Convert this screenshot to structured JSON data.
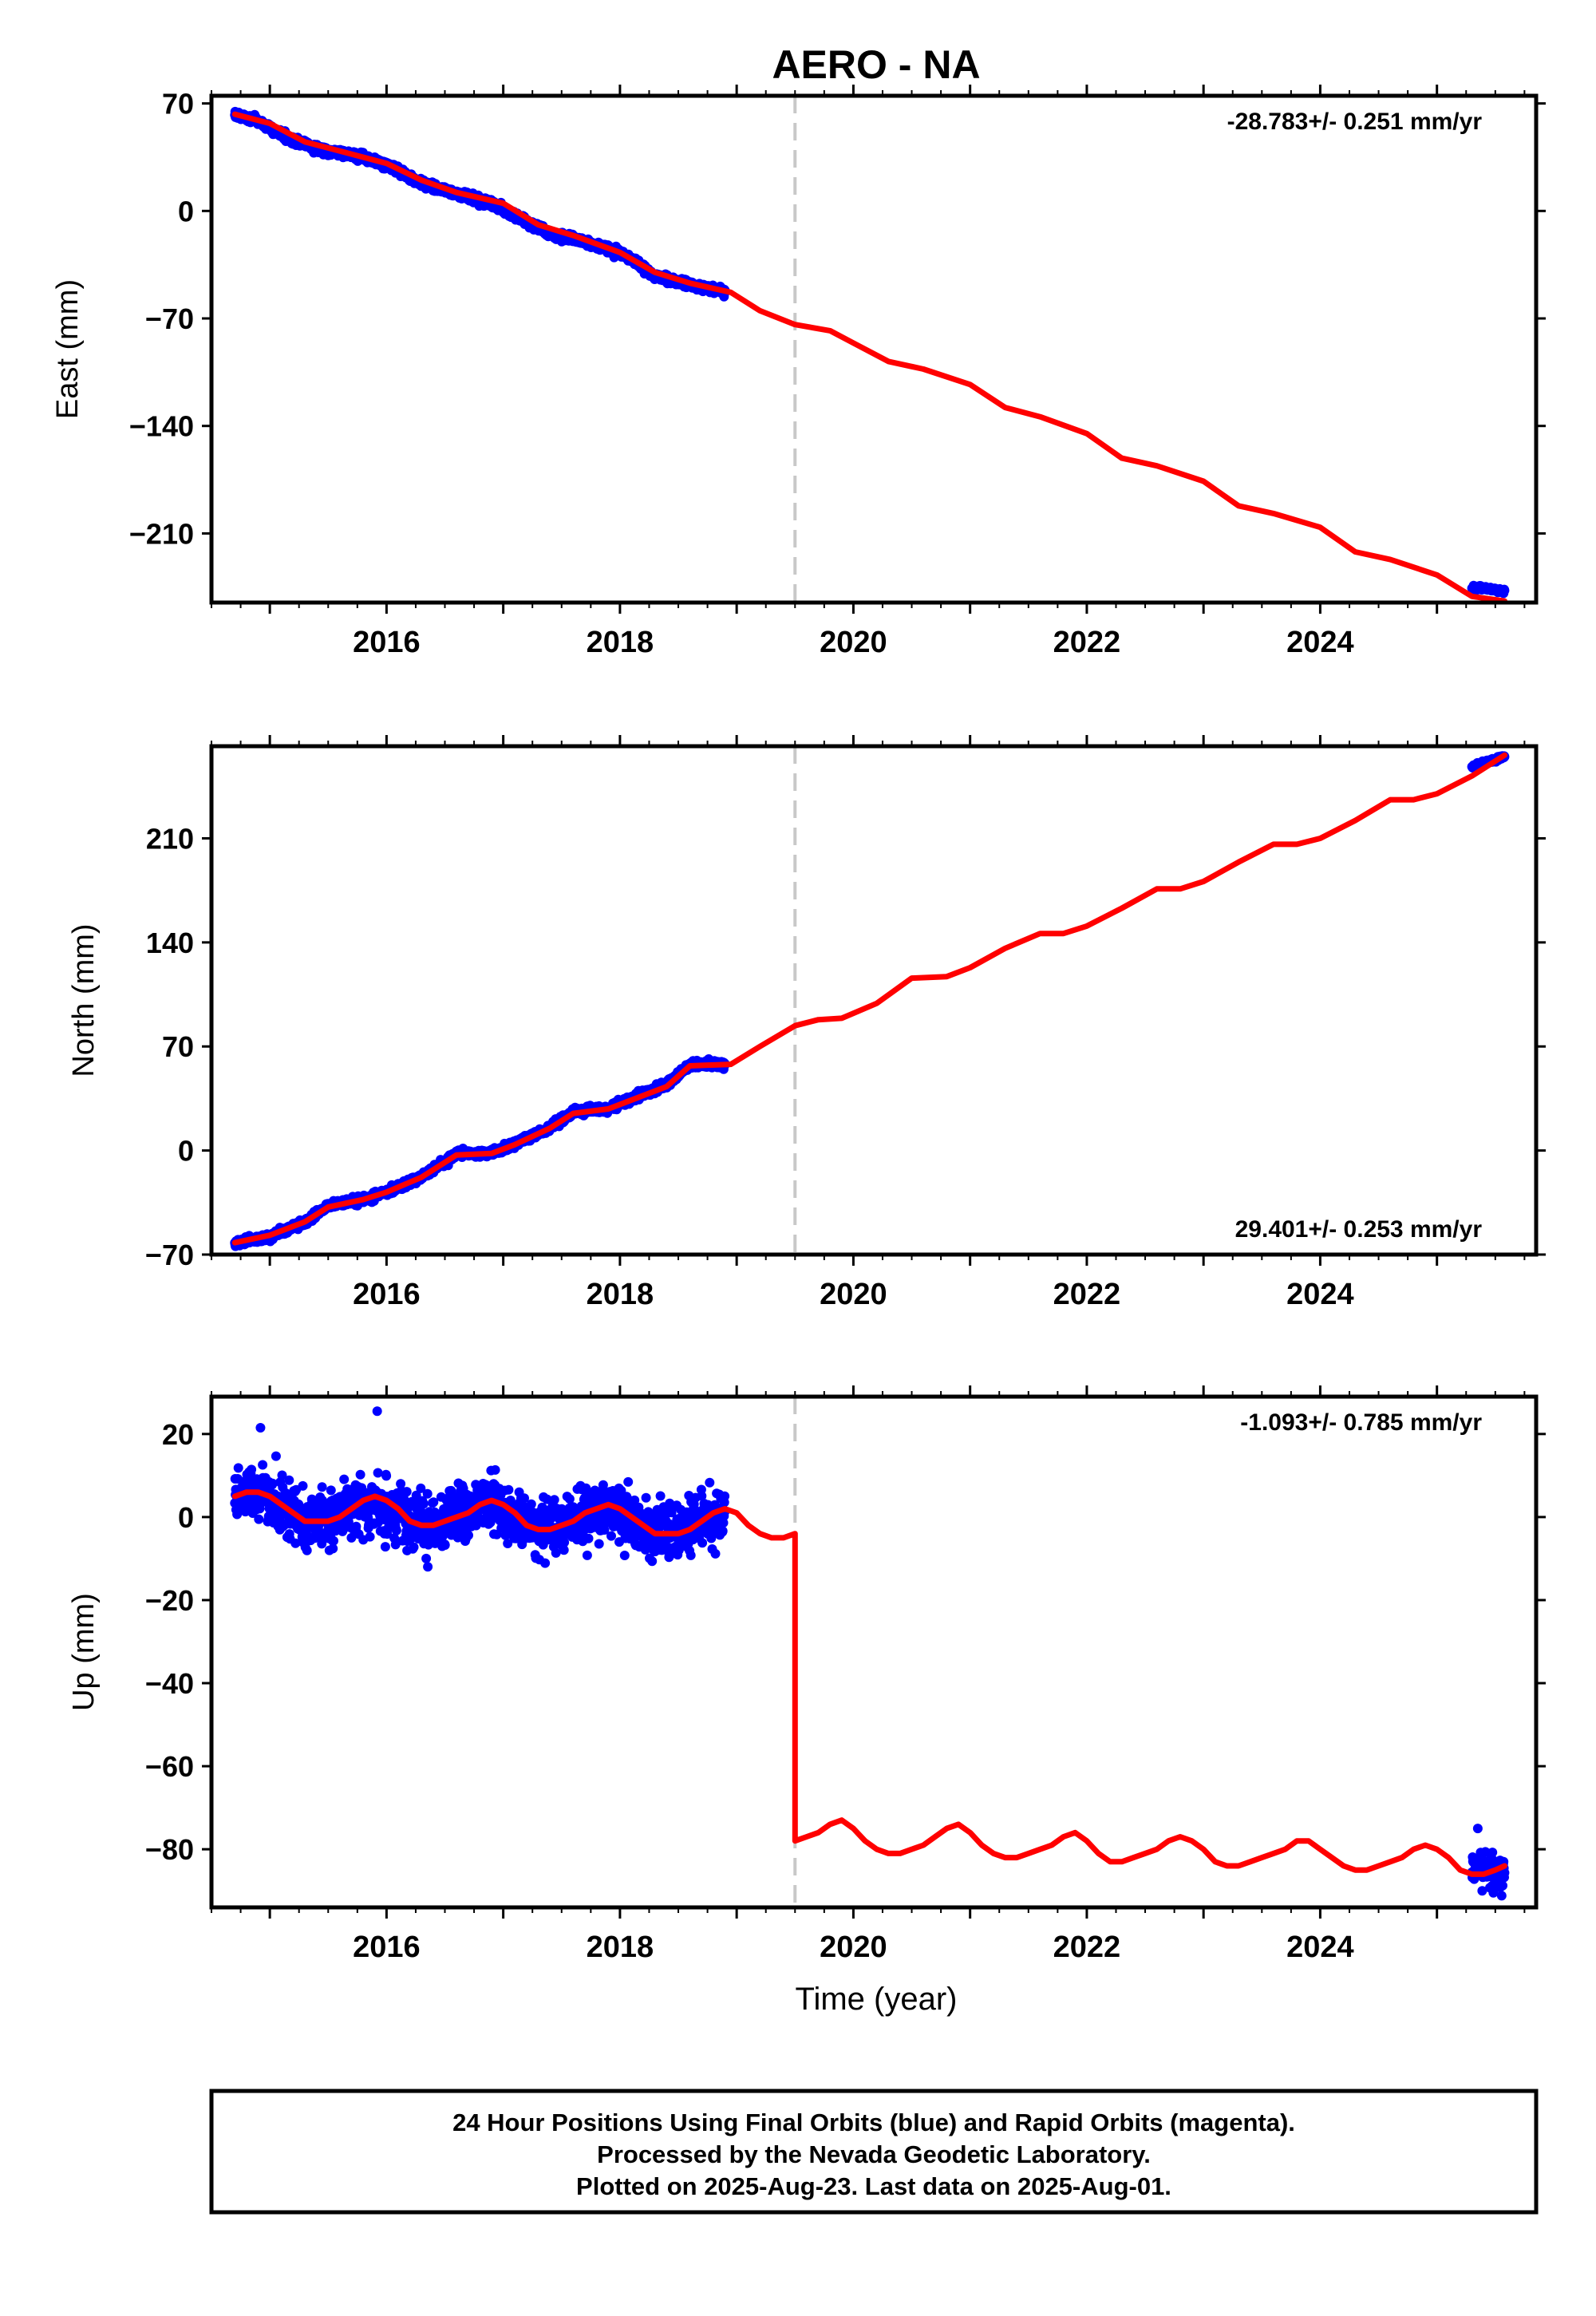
{
  "title": "AERO - NA",
  "colors": {
    "final_orbits": "#0000ff",
    "model": "#ff0000",
    "frame": "#000000",
    "break_line": "#c8c8c8"
  },
  "xlabel": "Time (year)",
  "x_ticks": [
    "2016",
    "2018",
    "2020",
    "2022",
    "2024"
  ],
  "footer": {
    "line1": "24 Hour Positions Using Final Orbits (blue) and Rapid Orbits (magenta).",
    "line2": "Processed by the Nevada Geodetic Laboratory.",
    "line3": "Plotted on 2025-Aug-23. Last data on 2025-Aug-01."
  },
  "chart_data": [
    {
      "type": "scatter",
      "component": "east",
      "ylabel": "East (mm)",
      "rate_label": "-28.783+/- 0.251 mm/yr",
      "xlim": [
        2014.5,
        2025.85
      ],
      "ylim": [
        -255,
        75
      ],
      "y_ticks": [
        70,
        0,
        -70,
        -140,
        -210
      ],
      "y_tick_labels": [
        "70",
        "0",
        "−70",
        "−140",
        "−210"
      ],
      "equipment_change": 2019.5,
      "legend": "none",
      "grid": false,
      "data_segments": [
        {
          "x": [
            2014.7,
            2014.9,
            2015.2,
            2015.5,
            2015.8,
            2016.0,
            2016.3,
            2016.6,
            2016.9,
            2017.1,
            2017.4,
            2017.7,
            2018.0,
            2018.3,
            2018.6,
            2018.9
          ],
          "y": [
            63,
            58,
            46,
            39,
            35,
            30,
            18,
            11,
            5,
            -3,
            -15,
            -20,
            -27,
            -42,
            -48,
            -53
          ],
          "scatter_mm": 1.8
        },
        {
          "x": [
            2025.3,
            2025.45,
            2025.58
          ],
          "y": [
            -245,
            -246,
            -248
          ],
          "scatter_mm": 1.0
        }
      ],
      "model": {
        "offset_at_break": 0,
        "x": [
          2014.7,
          2015.0,
          2015.3,
          2015.6,
          2016.0,
          2016.3,
          2016.6,
          2017.0,
          2017.3,
          2017.6,
          2018.0,
          2018.3,
          2018.6,
          2018.95,
          2019.2,
          2019.5,
          2019.8,
          2020.0,
          2020.3,
          2020.6,
          2021.0,
          2021.3,
          2021.6,
          2022.0,
          2022.3,
          2022.6,
          2023.0,
          2023.3,
          2023.6,
          2024.0,
          2024.3,
          2024.6,
          2025.0,
          2025.3,
          2025.58
        ],
        "y": [
          63,
          57,
          45,
          39,
          31,
          20,
          12,
          5,
          -9,
          -16,
          -27,
          -40,
          -47,
          -53,
          -65,
          -74,
          -78,
          -86,
          -98,
          -103,
          -113,
          -128,
          -134,
          -145,
          -161,
          -166,
          -176,
          -192,
          -197,
          -206,
          -222,
          -227,
          -237,
          -251,
          -254
        ]
      }
    },
    {
      "type": "scatter",
      "component": "north",
      "ylabel": "North (mm)",
      "rate_label": "29.401+/- 0.253 mm/yr",
      "xlim": [
        2014.5,
        2025.85
      ],
      "ylim": [
        -70,
        272
      ],
      "y_ticks": [
        210,
        140,
        70,
        0,
        -70
      ],
      "y_tick_labels": [
        "210",
        "140",
        "70",
        "0",
        "−70"
      ],
      "equipment_change": 2019.5,
      "legend": "none",
      "grid": false,
      "data_segments": [
        {
          "x": [
            2014.7,
            2015.0,
            2015.3,
            2015.5,
            2015.8,
            2016.0,
            2016.3,
            2016.6,
            2016.9,
            2017.1,
            2017.4,
            2017.6,
            2017.9,
            2018.1,
            2018.4,
            2018.6,
            2018.9
          ],
          "y": [
            -62,
            -58,
            -48,
            -37,
            -33,
            -28,
            -18,
            -2,
            -2,
            5,
            15,
            26,
            28,
            35,
            44,
            58,
            58
          ],
          "scatter_mm": 1.8
        },
        {
          "x": [
            2025.3,
            2025.45,
            2025.58
          ],
          "y": [
            258,
            262,
            265
          ],
          "scatter_mm": 1.0
        }
      ],
      "model": {
        "offset_at_break": 0,
        "x": [
          2014.7,
          2015.0,
          2015.3,
          2015.5,
          2015.8,
          2016.0,
          2016.3,
          2016.6,
          2016.9,
          2017.1,
          2017.4,
          2017.6,
          2017.9,
          2018.1,
          2018.4,
          2018.6,
          2018.95,
          2019.2,
          2019.5,
          2019.7,
          2019.9,
          2020.2,
          2020.5,
          2020.8,
          2021.0,
          2021.3,
          2021.6,
          2021.8,
          2022.0,
          2022.3,
          2022.6,
          2022.8,
          2023.0,
          2023.3,
          2023.6,
          2023.8,
          2024.0,
          2024.3,
          2024.6,
          2024.8,
          2025.0,
          2025.3,
          2025.58
        ],
        "y": [
          -62,
          -57,
          -48,
          -38,
          -33,
          -28,
          -18,
          -3,
          -2,
          4,
          15,
          25,
          28,
          34,
          43,
          57,
          58,
          70,
          84,
          88,
          89,
          99,
          116,
          117,
          123,
          136,
          146,
          146,
          151,
          163,
          176,
          176,
          181,
          194,
          206,
          206,
          210,
          222,
          236,
          236,
          240,
          252,
          266
        ]
      }
    },
    {
      "type": "scatter",
      "component": "up",
      "ylabel": "Up (mm)",
      "rate_label": "-1.093+/- 0.785 mm/yr",
      "xlim": [
        2014.5,
        2025.85
      ],
      "ylim": [
        -94,
        29
      ],
      "y_ticks": [
        20,
        0,
        -20,
        -40,
        -60,
        -80
      ],
      "y_tick_labels": [
        "20",
        "0",
        "−20",
        "−40",
        "−60",
        "−80"
      ],
      "equipment_change": 2019.5,
      "legend": "none",
      "grid": false,
      "data_segments": [
        {
          "x": [
            2014.7,
            2014.9,
            2015.1,
            2015.3,
            2015.5,
            2015.7,
            2015.9,
            2016.1,
            2016.3,
            2016.5,
            2016.7,
            2016.9,
            2017.1,
            2017.3,
            2017.5,
            2017.7,
            2017.9,
            2018.1,
            2018.3,
            2018.5,
            2018.7,
            2018.9
          ],
          "y": [
            5,
            6,
            3,
            -1,
            -1,
            2,
            4,
            1,
            -2,
            -1,
            1,
            3,
            0,
            -3,
            -2,
            0,
            2,
            -1,
            -4,
            -3,
            -1,
            1
          ],
          "scatter_mm": 4.5
        },
        {
          "x": [
            2025.3,
            2025.45,
            2025.58
          ],
          "y": [
            -84,
            -85,
            -86
          ],
          "scatter_mm": 3.0
        }
      ],
      "outliers": [
        {
          "x": 2015.92,
          "y": 25.5
        },
        {
          "x": 2014.92,
          "y": 21.5
        },
        {
          "x": 2025.35,
          "y": -75
        }
      ],
      "model": {
        "offset_at_break": -74,
        "x": [
          2014.7,
          2014.8,
          2014.9,
          2015.0,
          2015.1,
          2015.2,
          2015.3,
          2015.4,
          2015.5,
          2015.6,
          2015.7,
          2015.8,
          2015.9,
          2016.0,
          2016.1,
          2016.2,
          2016.3,
          2016.4,
          2016.5,
          2016.6,
          2016.7,
          2016.8,
          2016.9,
          2017.0,
          2017.1,
          2017.2,
          2017.3,
          2017.4,
          2017.5,
          2017.6,
          2017.7,
          2017.8,
          2017.9,
          2018.0,
          2018.1,
          2018.2,
          2018.3,
          2018.4,
          2018.5,
          2018.6,
          2018.7,
          2018.8,
          2018.9,
          2019.0,
          2019.1,
          2019.2,
          2019.3,
          2019.4,
          2019.5,
          2019.5,
          2019.6,
          2019.7,
          2019.8,
          2019.9,
          2020.0,
          2020.1,
          2020.2,
          2020.3,
          2020.4,
          2020.5,
          2020.6,
          2020.7,
          2020.8,
          2020.9,
          2021.0,
          2021.1,
          2021.2,
          2021.3,
          2021.4,
          2021.5,
          2021.6,
          2021.7,
          2021.8,
          2021.9,
          2022.0,
          2022.1,
          2022.2,
          2022.3,
          2022.4,
          2022.5,
          2022.6,
          2022.7,
          2022.8,
          2022.9,
          2023.0,
          2023.1,
          2023.2,
          2023.3,
          2023.4,
          2023.5,
          2023.6,
          2023.7,
          2023.8,
          2023.9,
          2024.0,
          2024.1,
          2024.2,
          2024.3,
          2024.4,
          2024.5,
          2024.6,
          2024.7,
          2024.8,
          2024.9,
          2025.0,
          2025.1,
          2025.2,
          2025.3,
          2025.4,
          2025.5,
          2025.58
        ],
        "y": [
          5,
          6,
          6,
          5,
          3,
          1,
          -1,
          -1,
          -1,
          0,
          2,
          4,
          5,
          4,
          2,
          -1,
          -2,
          -2,
          -1,
          0,
          1,
          3,
          4,
          3,
          1,
          -2,
          -3,
          -3,
          -2,
          -1,
          1,
          2,
          3,
          2,
          0,
          -2,
          -4,
          -4,
          -4,
          -3,
          -1,
          1,
          2,
          1,
          -2,
          -4,
          -5,
          -5,
          -4,
          -78,
          -77,
          -76,
          -74,
          -73,
          -75,
          -78,
          -80,
          -81,
          -81,
          -80,
          -79,
          -77,
          -75,
          -74,
          -76,
          -79,
          -81,
          -82,
          -82,
          -81,
          -80,
          -79,
          -77,
          -76,
          -78,
          -81,
          -83,
          -83,
          -82,
          -81,
          -80,
          -78,
          -77,
          -78,
          -80,
          -83,
          -84,
          -84,
          -83,
          -82,
          -81,
          -80,
          -78,
          -78,
          -80,
          -82,
          -84,
          -85,
          -85,
          -84,
          -83,
          -82,
          -80,
          -79,
          -80,
          -82,
          -85,
          -86,
          -86,
          -85,
          -84
        ]
      }
    }
  ]
}
